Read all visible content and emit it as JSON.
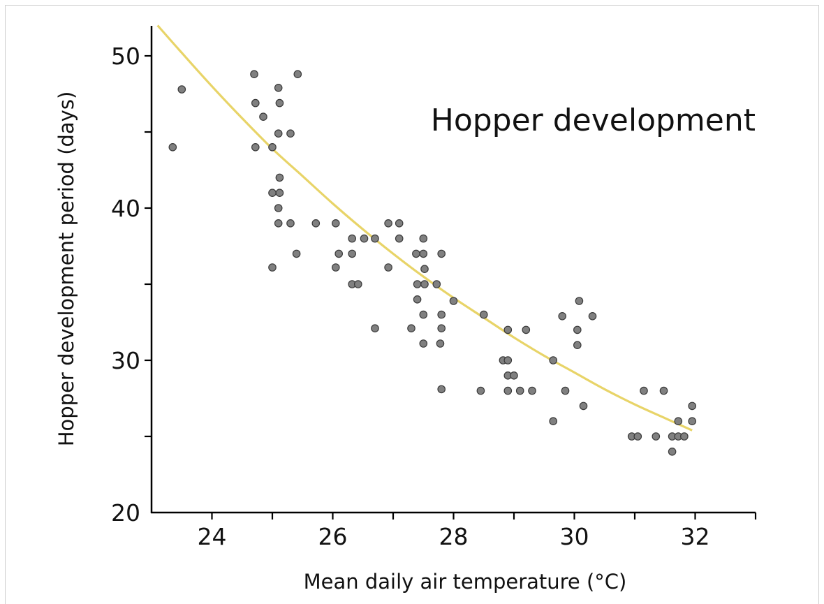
{
  "chart_data": {
    "type": "scatter",
    "title": "Hopper development",
    "xlabel": "Mean daily air temperature (°C)",
    "ylabel": "Hopper development period (days)",
    "xlim": [
      23,
      33
    ],
    "ylim": [
      20,
      52
    ],
    "x_ticks": [
      24,
      26,
      28,
      30,
      32
    ],
    "x_minor_ticks": [
      25,
      27,
      29,
      31,
      33
    ],
    "y_ticks": [
      20,
      30,
      40,
      50
    ],
    "y_minor_ticks": [
      25,
      35,
      45
    ],
    "grid": false,
    "colors": {
      "points": "#808080",
      "point_stroke": "#3a3a3a",
      "trend": "#e8d468",
      "axes": "#000000"
    },
    "series": [
      {
        "type": "scatter",
        "points": [
          [
            23.35,
            44
          ],
          [
            23.5,
            47.8
          ],
          [
            24.7,
            48.8
          ],
          [
            24.72,
            46.9
          ],
          [
            24.72,
            44
          ],
          [
            24.85,
            46
          ],
          [
            25.0,
            44
          ],
          [
            25.0,
            41
          ],
          [
            25.0,
            36.1
          ],
          [
            25.1,
            44.9
          ],
          [
            25.1,
            47.9
          ],
          [
            25.12,
            46.9
          ],
          [
            25.12,
            42
          ],
          [
            25.12,
            41
          ],
          [
            25.1,
            40
          ],
          [
            25.1,
            39
          ],
          [
            25.3,
            44.9
          ],
          [
            25.3,
            39
          ],
          [
            25.4,
            37
          ],
          [
            25.42,
            48.8
          ],
          [
            25.72,
            39
          ],
          [
            26.05,
            39
          ],
          [
            26.05,
            36.1
          ],
          [
            26.1,
            37
          ],
          [
            26.32,
            38
          ],
          [
            26.32,
            37
          ],
          [
            26.32,
            35
          ],
          [
            26.42,
            35
          ],
          [
            26.52,
            38
          ],
          [
            26.7,
            38
          ],
          [
            26.7,
            32.1
          ],
          [
            26.92,
            36.1
          ],
          [
            26.92,
            39
          ],
          [
            27.1,
            39
          ],
          [
            27.1,
            38
          ],
          [
            27.3,
            32.1
          ],
          [
            27.38,
            37
          ],
          [
            27.4,
            35
          ],
          [
            27.4,
            34
          ],
          [
            27.5,
            37
          ],
          [
            27.5,
            38
          ],
          [
            27.5,
            33
          ],
          [
            27.5,
            31.1
          ],
          [
            27.52,
            35
          ],
          [
            27.52,
            36
          ],
          [
            27.72,
            35
          ],
          [
            27.8,
            37
          ],
          [
            27.8,
            32.1
          ],
          [
            27.8,
            33
          ],
          [
            27.78,
            31.1
          ],
          [
            27.8,
            28.1
          ],
          [
            28.0,
            33.9
          ],
          [
            28.5,
            33
          ],
          [
            28.45,
            28
          ],
          [
            28.82,
            30
          ],
          [
            28.9,
            32
          ],
          [
            28.9,
            30
          ],
          [
            28.9,
            29
          ],
          [
            28.9,
            28
          ],
          [
            29.0,
            29
          ],
          [
            29.1,
            28
          ],
          [
            29.2,
            32
          ],
          [
            29.3,
            28
          ],
          [
            29.65,
            30
          ],
          [
            29.65,
            26
          ],
          [
            29.8,
            32.9
          ],
          [
            29.85,
            28
          ],
          [
            30.05,
            32
          ],
          [
            30.05,
            31
          ],
          [
            30.08,
            33.9
          ],
          [
            30.15,
            27
          ],
          [
            30.3,
            32.9
          ],
          [
            30.95,
            25
          ],
          [
            31.05,
            25
          ],
          [
            31.15,
            28
          ],
          [
            31.35,
            25
          ],
          [
            31.48,
            28
          ],
          [
            31.62,
            25
          ],
          [
            31.62,
            24
          ],
          [
            31.72,
            26
          ],
          [
            31.72,
            25
          ],
          [
            31.82,
            25
          ],
          [
            31.95,
            27
          ],
          [
            31.95,
            26
          ]
        ]
      },
      {
        "type": "line",
        "curve": "exponential fit",
        "x": [
          23.1,
          23.5,
          24,
          24.5,
          25,
          25.5,
          26,
          26.5,
          27,
          27.5,
          28,
          28.5,
          29,
          29.5,
          30,
          30.5,
          31,
          31.5,
          31.95
        ],
        "y": [
          52.0,
          50.2,
          48.0,
          45.9,
          43.9,
          42.1,
          40.3,
          38.6,
          37.0,
          35.5,
          34.1,
          32.8,
          31.5,
          30.3,
          29.2,
          28.1,
          27.1,
          26.2,
          25.4
        ]
      }
    ]
  }
}
